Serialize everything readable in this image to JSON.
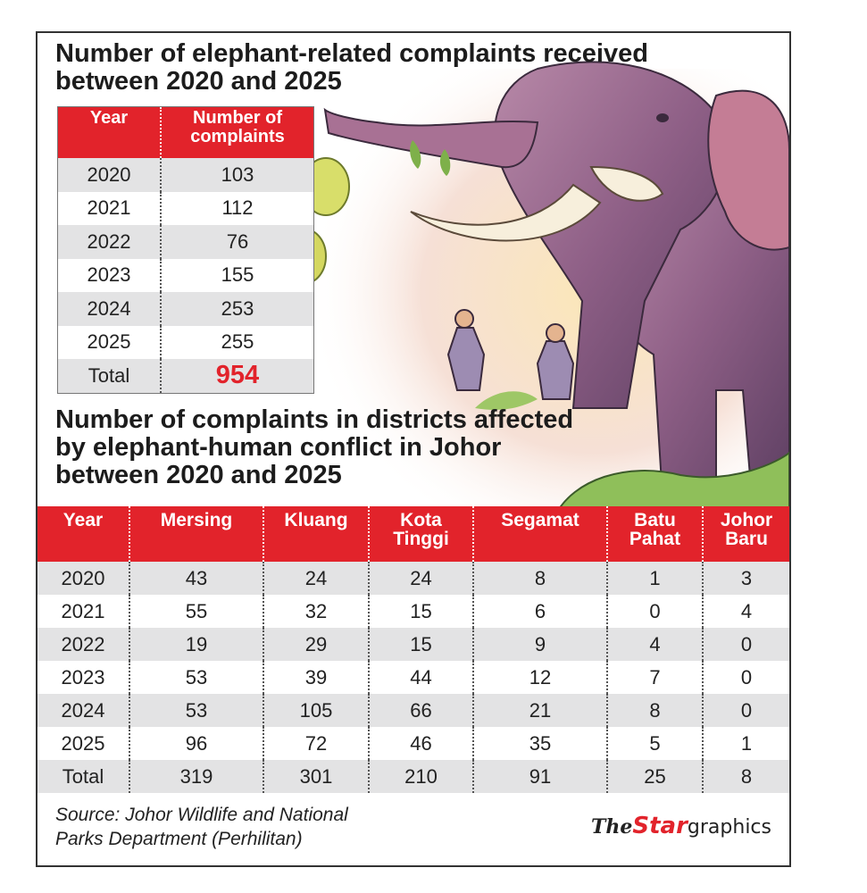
{
  "chart_data": [
    {
      "type": "table",
      "title": "Number of elephant-related complaints received between 2020 and 2025",
      "columns": [
        "Year",
        "Number of complaints"
      ],
      "rows": [
        [
          "2020",
          "103"
        ],
        [
          "2021",
          "112"
        ],
        [
          "2022",
          "76"
        ],
        [
          "2023",
          "155"
        ],
        [
          "2024",
          "253"
        ],
        [
          "2025",
          "255"
        ]
      ],
      "total_label": "Total",
      "total_value": "954"
    },
    {
      "type": "table",
      "title": "Number of complaints in districts affected by elephant-human conflict in Johor between 2020 and 2025",
      "columns": [
        "Year",
        "Mersing",
        "Kluang",
        "Kota Tinggi",
        "Segamat",
        "Batu Pahat",
        "Johor Baru"
      ],
      "rows": [
        [
          "2020",
          "43",
          "24",
          "24",
          "8",
          "1",
          "3"
        ],
        [
          "2021",
          "55",
          "32",
          "15",
          "6",
          "0",
          "4"
        ],
        [
          "2022",
          "19",
          "29",
          "15",
          "9",
          "4",
          "0"
        ],
        [
          "2023",
          "53",
          "39",
          "44",
          "12",
          "7",
          "0"
        ],
        [
          "2024",
          "53",
          "105",
          "66",
          "21",
          "8",
          "0"
        ],
        [
          "2025",
          "96",
          "72",
          "46",
          "35",
          "5",
          "1"
        ],
        [
          "Total",
          "319",
          "301",
          "210",
          "91",
          "25",
          "8"
        ]
      ]
    }
  ],
  "source": {
    "line1": "Source: Johor Wildlife and National",
    "line2": "Parks Department (Perhilitan)"
  },
  "logo": {
    "part1": "The",
    "part2": "Star",
    "part3": "graphics"
  },
  "colors": {
    "accent": "#e2232b",
    "stripe": "#e3e3e4"
  },
  "illustration": "elephant-and-farmers-illustration"
}
